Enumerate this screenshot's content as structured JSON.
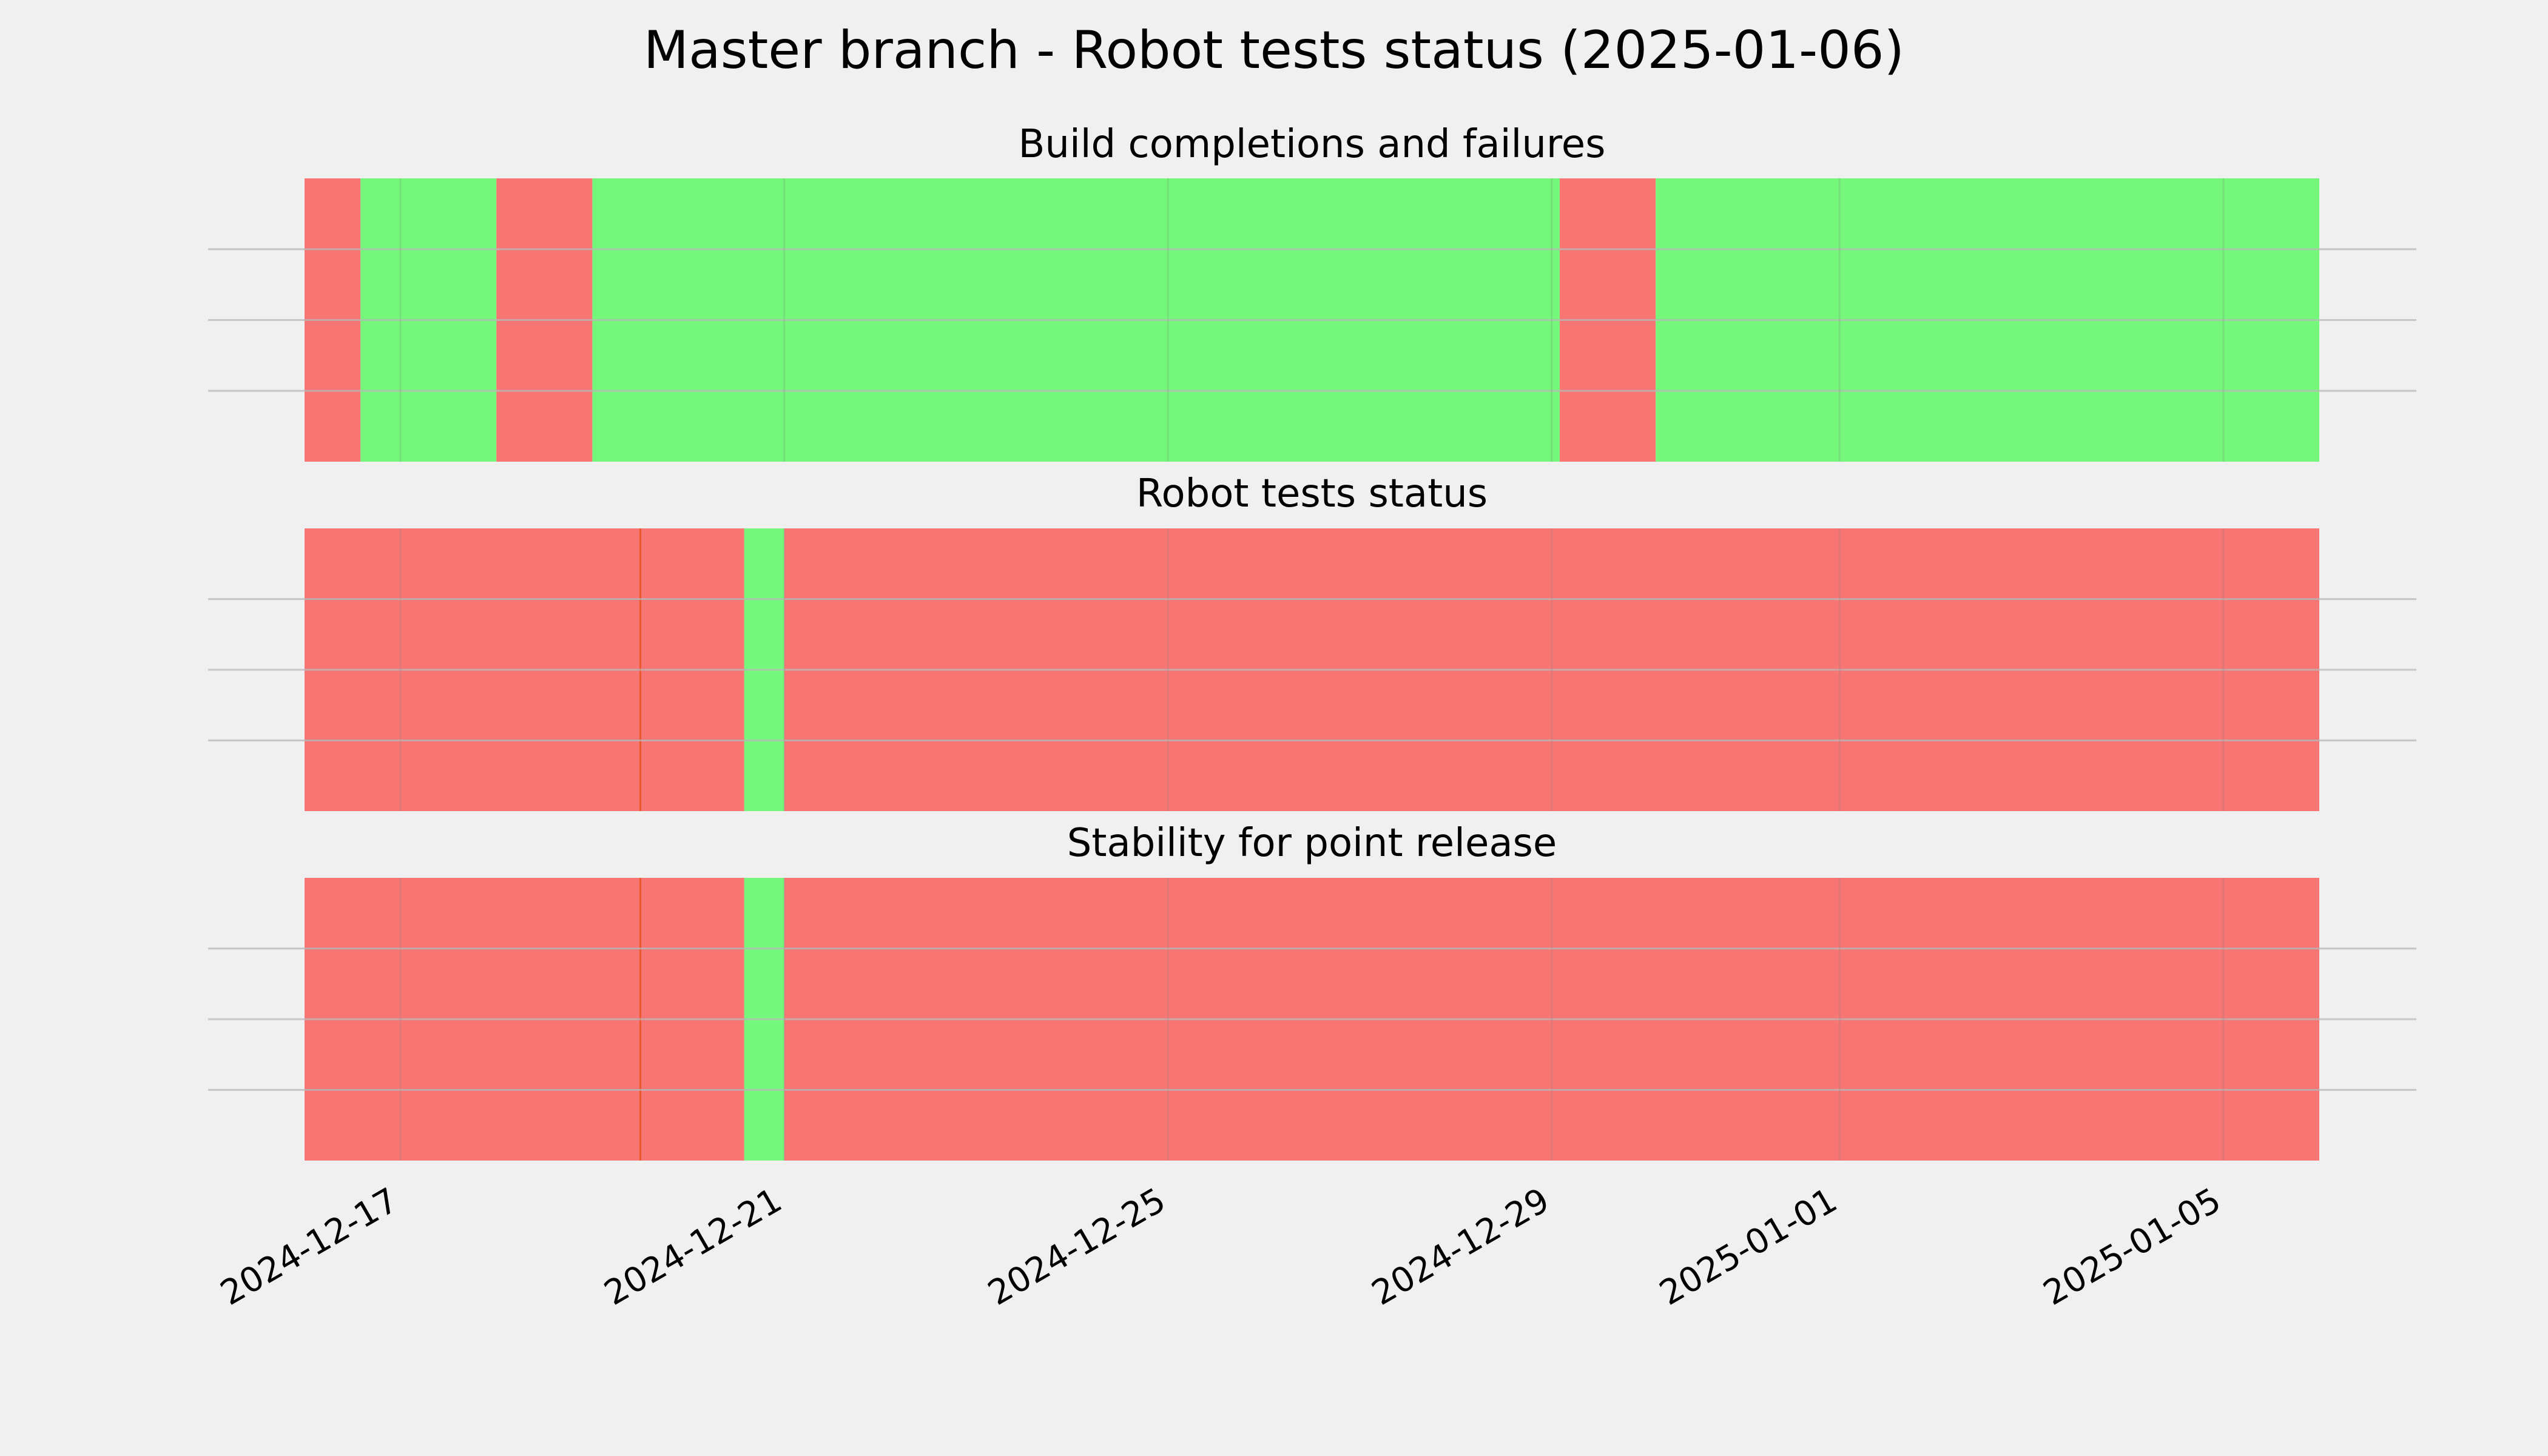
{
  "figure": {
    "title": "Master branch - Robot tests status (2025-01-06)"
  },
  "colors": {
    "background": "#f0f0f0",
    "pass": "#75f77b",
    "fail": "#f77674",
    "grid": "#c5c5c5",
    "edge": "#e8521a"
  },
  "chart_data": [
    {
      "type": "timeline",
      "title": "Build completions and failures",
      "xlim": [
        "2024-12-16",
        "2025-01-06"
      ],
      "x_ticks": [
        "2024-12-17",
        "2024-12-21",
        "2024-12-25",
        "2024-12-29",
        "2025-01-01",
        "2025-01-05"
      ],
      "y_ticks": [],
      "grid": true,
      "segments": [
        {
          "start": "2024-12-16",
          "end": "2024-12-16T14:00",
          "status": "fail"
        },
        {
          "start": "2024-12-16T14:00",
          "end": "2024-12-18T00:00",
          "status": "pass"
        },
        {
          "start": "2024-12-18T00:00",
          "end": "2024-12-19T00:00",
          "status": "fail"
        },
        {
          "start": "2024-12-19T00:00",
          "end": "2024-12-29T02:00",
          "status": "pass"
        },
        {
          "start": "2024-12-29T02:00",
          "end": "2024-12-30T02:00",
          "status": "fail"
        },
        {
          "start": "2024-12-30T02:00",
          "end": "2025-01-06",
          "status": "pass"
        }
      ]
    },
    {
      "type": "timeline",
      "title": "Robot tests status",
      "xlim": [
        "2024-12-16",
        "2025-01-06"
      ],
      "x_ticks": [
        "2024-12-17",
        "2024-12-21",
        "2024-12-25",
        "2024-12-29",
        "2025-01-01",
        "2025-01-05"
      ],
      "y_ticks": [],
      "grid": true,
      "segments": [
        {
          "start": "2024-12-16",
          "end": "2024-12-19T12:00",
          "status": "fail"
        },
        {
          "start": "2024-12-19T12:00",
          "end": "2024-12-20T14:00",
          "status": "fail"
        },
        {
          "start": "2024-12-20T14:00",
          "end": "2024-12-21T00:00",
          "status": "pass"
        },
        {
          "start": "2024-12-21T00:00",
          "end": "2025-01-06",
          "status": "fail"
        }
      ]
    },
    {
      "type": "timeline",
      "title": "Stability for point release",
      "xlim": [
        "2024-12-16",
        "2025-01-06"
      ],
      "x_ticks": [
        "2024-12-17",
        "2024-12-21",
        "2024-12-25",
        "2024-12-29",
        "2025-01-01",
        "2025-01-05"
      ],
      "y_ticks": [],
      "grid": true,
      "segments": [
        {
          "start": "2024-12-16",
          "end": "2024-12-19T12:00",
          "status": "fail"
        },
        {
          "start": "2024-12-19T12:00",
          "end": "2024-12-20T14:00",
          "status": "fail"
        },
        {
          "start": "2024-12-20T14:00",
          "end": "2024-12-21T00:00",
          "status": "pass"
        },
        {
          "start": "2024-12-21T00:00",
          "end": "2025-01-06",
          "status": "fail"
        }
      ]
    }
  ]
}
